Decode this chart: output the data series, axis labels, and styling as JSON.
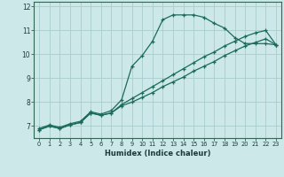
{
  "xlabel": "Humidex (Indice chaleur)",
  "bg_color": "#cce8e8",
  "grid_color": "#aacccc",
  "line_color": "#1a6b5a",
  "xlim": [
    -0.5,
    23.5
  ],
  "ylim": [
    6.5,
    12.2
  ],
  "xticks": [
    0,
    1,
    2,
    3,
    4,
    5,
    6,
    7,
    8,
    9,
    10,
    11,
    12,
    13,
    14,
    15,
    16,
    17,
    18,
    19,
    20,
    21,
    22,
    23
  ],
  "yticks": [
    7,
    8,
    9,
    10,
    11,
    12
  ],
  "line1_x": [
    0,
    1,
    2,
    3,
    4,
    5,
    6,
    7,
    8,
    9,
    10,
    11,
    12,
    13,
    14,
    15,
    16,
    17,
    18,
    19,
    20,
    21,
    22,
    23
  ],
  "line1_y": [
    6.9,
    7.05,
    6.95,
    7.1,
    7.2,
    7.6,
    7.5,
    7.65,
    8.1,
    9.5,
    9.95,
    10.55,
    11.45,
    11.65,
    11.65,
    11.65,
    11.55,
    11.3,
    11.1,
    10.7,
    10.45,
    10.45,
    10.45,
    10.4
  ],
  "line2_x": [
    0,
    1,
    2,
    3,
    4,
    5,
    6,
    7,
    8,
    9,
    10,
    11,
    12,
    13,
    14,
    15,
    16,
    17,
    18,
    19,
    20,
    21,
    22,
    23
  ],
  "line2_y": [
    6.85,
    7.0,
    6.9,
    7.05,
    7.15,
    7.55,
    7.45,
    7.55,
    7.9,
    8.15,
    8.4,
    8.65,
    8.9,
    9.15,
    9.4,
    9.65,
    9.9,
    10.1,
    10.35,
    10.55,
    10.75,
    10.9,
    11.0,
    10.4
  ],
  "line3_x": [
    0,
    1,
    2,
    3,
    4,
    5,
    6,
    7,
    8,
    9,
    10,
    11,
    12,
    13,
    14,
    15,
    16,
    17,
    18,
    19,
    20,
    21,
    22,
    23
  ],
  "line3_y": [
    6.85,
    7.0,
    6.9,
    7.05,
    7.15,
    7.55,
    7.45,
    7.55,
    7.85,
    8.0,
    8.2,
    8.4,
    8.65,
    8.85,
    9.05,
    9.3,
    9.5,
    9.7,
    9.95,
    10.15,
    10.35,
    10.5,
    10.65,
    10.4
  ]
}
